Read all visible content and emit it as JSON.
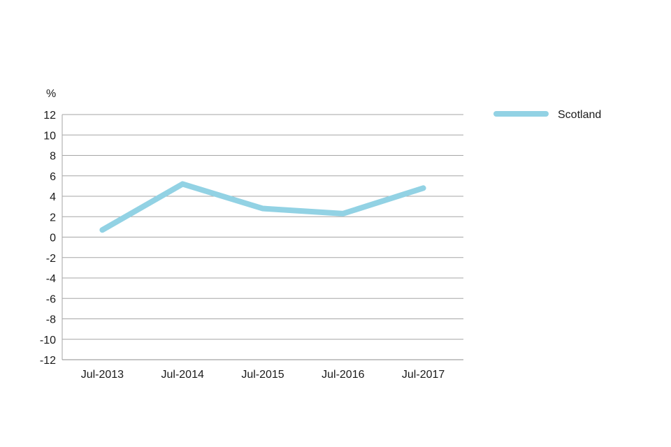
{
  "chart_data": {
    "type": "line",
    "title": "",
    "xlabel": "",
    "ylabel": "%",
    "categories": [
      "Jul-2013",
      "Jul-2014",
      "Jul-2015",
      "Jul-2016",
      "Jul-2017"
    ],
    "series": [
      {
        "name": "Scotland",
        "color": "#92d2e4",
        "values": [
          0.7,
          5.2,
          2.8,
          2.3,
          4.8
        ]
      }
    ],
    "ylim": [
      -12,
      12
    ],
    "yticks": [
      12,
      10,
      8,
      6,
      4,
      2,
      0,
      -2,
      -4,
      -6,
      -8,
      -10,
      -12
    ],
    "grid": true,
    "legend_position": "top-right"
  }
}
